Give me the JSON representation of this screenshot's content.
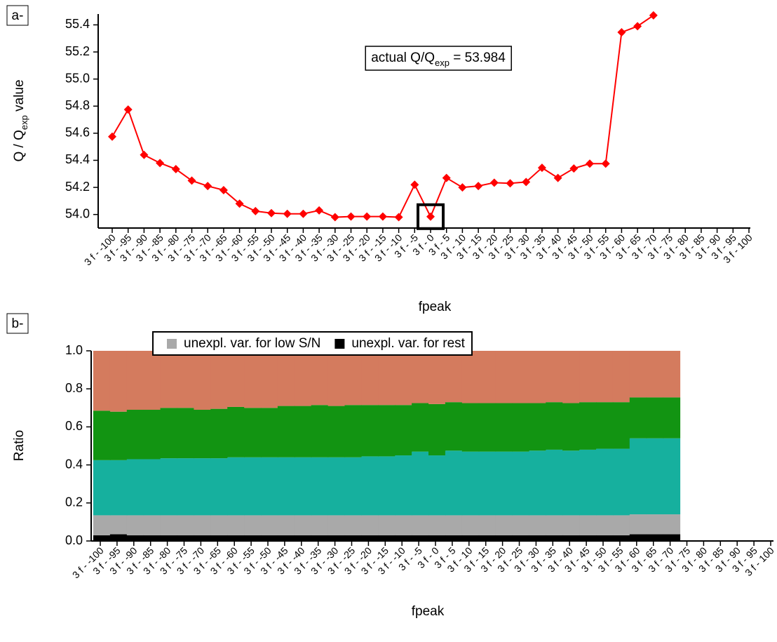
{
  "chart_data": [
    {
      "type": "line",
      "panel_label": "a-",
      "x_label": "fpeak",
      "y_label_parts": [
        "Q / Q",
        "exp",
        " value"
      ],
      "annotation_parts": [
        "actual Q/Q",
        "exp",
        " = 53.984"
      ],
      "highlight": "3 f - 0",
      "categories": [
        "3 f - -100",
        "3 f - -95",
        "3 f - -90",
        "3 f - -85",
        "3 f - -80",
        "3 f - -75",
        "3 f - -70",
        "3 f - -65",
        "3 f - -60",
        "3 f - -55",
        "3 f - -50",
        "3 f - -45",
        "3 f - -40",
        "3 f - -35",
        "3 f - -30",
        "3 f - -25",
        "3 f - -20",
        "3 f - -15",
        "3 f - -10",
        "3 f - -5",
        "3 f - 0",
        "3 f - 5",
        "3 f - 10",
        "3 f - 15",
        "3 f - 20",
        "3 f - 25",
        "3 f - 30",
        "3 f - 35",
        "3 f - 40",
        "3 f - 45",
        "3 f - 50",
        "3 f - 55",
        "3 f - 60",
        "3 f - 65",
        "3 f - 70",
        "3 f - 75",
        "3 f - 80",
        "3 f - 85",
        "3 f - 90",
        "3 f - 95",
        "3 f - 100"
      ],
      "series": [
        {
          "color": "#ff0000",
          "values": [
            54.575,
            54.775,
            54.44,
            54.38,
            54.335,
            54.25,
            54.21,
            54.18,
            54.08,
            54.025,
            54.01,
            54.005,
            54.005,
            54.03,
            53.98,
            53.985,
            53.985,
            53.985,
            53.98,
            54.22,
            53.984,
            54.27,
            54.2,
            54.21,
            54.235,
            54.23,
            54.24,
            54.345,
            54.27,
            54.34,
            54.375,
            54.375,
            55.345,
            55.39,
            55.47,
            null,
            null,
            null,
            null,
            null,
            null
          ]
        }
      ],
      "ylim": [
        53.9,
        55.48
      ],
      "yticks": [
        {
          "value": 54.0,
          "label": "54.0"
        },
        {
          "value": 54.2,
          "label": "54.2"
        },
        {
          "value": 54.4,
          "label": "54.4"
        },
        {
          "value": 54.6,
          "label": "54.6"
        },
        {
          "value": 54.8,
          "label": "54.8"
        },
        {
          "value": 55.0,
          "label": "55.0"
        },
        {
          "value": 55.2,
          "label": "55.2"
        },
        {
          "value": 55.4,
          "label": "55.4"
        }
      ]
    },
    {
      "type": "stacked_area",
      "panel_label": "b-",
      "x_label": "fpeak",
      "y_label": "Ratio",
      "categories": [
        "3 f - -100",
        "3 f - -95",
        "3 f - -90",
        "3 f - -85",
        "3 f - -80",
        "3 f - -75",
        "3 f - -70",
        "3 f - -65",
        "3 f - -60",
        "3 f - -55",
        "3 f - -50",
        "3 f - -45",
        "3 f - -40",
        "3 f - -35",
        "3 f - -30",
        "3 f - -25",
        "3 f - -20",
        "3 f - -15",
        "3 f - -10",
        "3 f - -5",
        "3 f - 0",
        "3 f - 5",
        "3 f - 10",
        "3 f - 15",
        "3 f - 20",
        "3 f - 25",
        "3 f - 30",
        "3 f - 35",
        "3 f - 40",
        "3 f - 45",
        "3 f - 50",
        "3 f - 55",
        "3 f - 60",
        "3 f - 65",
        "3 f - 70",
        "3 f - 75",
        "3 f - 80",
        "3 f - 85",
        "3 f - 90",
        "3 f - 95",
        "3 f - 100"
      ],
      "series": [
        {
          "name": "unexpl. var. for rest",
          "color": "#000000",
          "values": [
            0.03,
            0.035,
            0.03,
            0.03,
            0.03,
            0.03,
            0.03,
            0.03,
            0.03,
            0.03,
            0.03,
            0.03,
            0.03,
            0.03,
            0.03,
            0.03,
            0.03,
            0.03,
            0.03,
            0.03,
            0.03,
            0.03,
            0.03,
            0.03,
            0.03,
            0.03,
            0.03,
            0.03,
            0.03,
            0.03,
            0.03,
            0.03,
            0.035,
            0.035,
            0.035,
            null,
            null,
            null,
            null,
            null,
            null
          ]
        },
        {
          "name": "unexpl. var. for low S/N",
          "color": "#a9a9a9",
          "values": [
            0.105,
            0.1,
            0.105,
            0.105,
            0.105,
            0.105,
            0.105,
            0.105,
            0.105,
            0.105,
            0.105,
            0.105,
            0.105,
            0.105,
            0.105,
            0.105,
            0.105,
            0.105,
            0.105,
            0.105,
            0.105,
            0.105,
            0.105,
            0.105,
            0.105,
            0.105,
            0.105,
            0.105,
            0.105,
            0.105,
            0.105,
            0.105,
            0.105,
            0.105,
            0.105,
            null,
            null,
            null,
            null,
            null,
            null
          ]
        },
        {
          "color": "#16b09e",
          "values": [
            0.29,
            0.29,
            0.295,
            0.295,
            0.3,
            0.3,
            0.3,
            0.3,
            0.305,
            0.305,
            0.305,
            0.305,
            0.305,
            0.305,
            0.305,
            0.305,
            0.31,
            0.31,
            0.315,
            0.335,
            0.315,
            0.34,
            0.335,
            0.335,
            0.335,
            0.335,
            0.34,
            0.345,
            0.34,
            0.345,
            0.35,
            0.35,
            0.4,
            0.4,
            0.4,
            null,
            null,
            null,
            null,
            null,
            null
          ]
        },
        {
          "color": "#129412",
          "values": [
            0.26,
            0.255,
            0.26,
            0.26,
            0.265,
            0.265,
            0.255,
            0.26,
            0.265,
            0.26,
            0.26,
            0.27,
            0.27,
            0.275,
            0.27,
            0.275,
            0.27,
            0.27,
            0.265,
            0.255,
            0.27,
            0.255,
            0.255,
            0.255,
            0.255,
            0.255,
            0.25,
            0.25,
            0.25,
            0.25,
            0.245,
            0.245,
            0.215,
            0.215,
            0.215,
            null,
            null,
            null,
            null,
            null,
            null
          ]
        },
        {
          "color": "#d47b5e",
          "values": [
            0.315,
            0.32,
            0.31,
            0.31,
            0.3,
            0.3,
            0.31,
            0.305,
            0.295,
            0.3,
            0.3,
            0.29,
            0.29,
            0.285,
            0.29,
            0.285,
            0.285,
            0.285,
            0.285,
            0.275,
            0.28,
            0.27,
            0.275,
            0.275,
            0.275,
            0.275,
            0.275,
            0.27,
            0.275,
            0.27,
            0.27,
            0.27,
            0.245,
            0.245,
            0.245,
            null,
            null,
            null,
            null,
            null,
            null
          ]
        }
      ],
      "ylim": [
        0,
        1
      ],
      "yticks": [
        {
          "value": 0,
          "label": "0.0"
        },
        {
          "value": 0.2,
          "label": "0.2"
        },
        {
          "value": 0.4,
          "label": "0.4"
        },
        {
          "value": 0.6,
          "label": "0.6"
        },
        {
          "value": 0.8,
          "label": "0.8"
        },
        {
          "value": 1,
          "label": "1.0"
        }
      ]
    }
  ]
}
